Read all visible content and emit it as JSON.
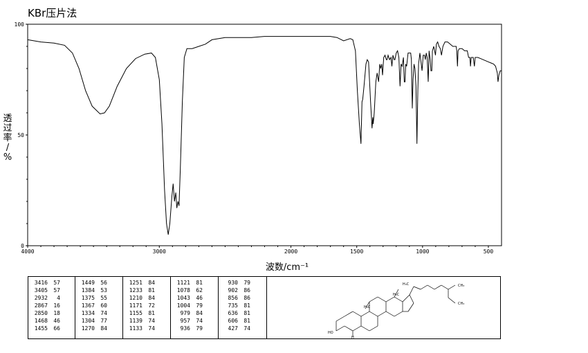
{
  "title": "KBr压片法",
  "chart_data": {
    "type": "line",
    "xlabel": "波数/cm⁻¹",
    "ylabel": "透\n过\n率\n/\n%",
    "xlim": [
      4000,
      400
    ],
    "ylim": [
      0,
      100
    ],
    "x_ticks": [
      4000,
      3000,
      2000,
      1500,
      1000,
      500
    ],
    "y_ticks": [
      0,
      50,
      100
    ],
    "grid": false,
    "series": [
      {
        "color": "#000000",
        "points": [
          [
            4000,
            93
          ],
          [
            3900,
            92
          ],
          [
            3800,
            91.5
          ],
          [
            3720,
            90.5
          ],
          [
            3660,
            87
          ],
          [
            3610,
            80
          ],
          [
            3560,
            70
          ],
          [
            3510,
            63
          ],
          [
            3450,
            59.5
          ],
          [
            3416,
            60
          ],
          [
            3380,
            63
          ],
          [
            3320,
            72
          ],
          [
            3250,
            80
          ],
          [
            3180,
            84.5
          ],
          [
            3110,
            86.5
          ],
          [
            3060,
            87
          ],
          [
            3030,
            85
          ],
          [
            3000,
            75
          ],
          [
            2980,
            55
          ],
          [
            2960,
            25
          ],
          [
            2945,
            10
          ],
          [
            2932,
            5
          ],
          [
            2920,
            10
          ],
          [
            2905,
            22
          ],
          [
            2895,
            28
          ],
          [
            2885,
            20
          ],
          [
            2875,
            24
          ],
          [
            2867,
            17
          ],
          [
            2858,
            20
          ],
          [
            2850,
            18
          ],
          [
            2840,
            35
          ],
          [
            2825,
            65
          ],
          [
            2810,
            85
          ],
          [
            2790,
            89
          ],
          [
            2750,
            89
          ],
          [
            2700,
            90
          ],
          [
            2650,
            91
          ],
          [
            2600,
            93
          ],
          [
            2500,
            94
          ],
          [
            2300,
            94
          ],
          [
            2200,
            94.5
          ],
          [
            2100,
            94.5
          ],
          [
            2000,
            94.5
          ],
          [
            1900,
            94.5
          ],
          [
            1800,
            94.5
          ],
          [
            1700,
            94.5
          ],
          [
            1650,
            94
          ],
          [
            1600,
            92.5
          ],
          [
            1550,
            93.5
          ],
          [
            1530,
            93
          ],
          [
            1510,
            88
          ],
          [
            1495,
            70
          ],
          [
            1480,
            55
          ],
          [
            1468,
            46
          ],
          [
            1460,
            65
          ],
          [
            1455,
            66
          ],
          [
            1445,
            72
          ],
          [
            1430,
            82
          ],
          [
            1420,
            84
          ],
          [
            1410,
            83
          ],
          [
            1395,
            65
          ],
          [
            1384,
            53
          ],
          [
            1378,
            58
          ],
          [
            1375,
            55
          ],
          [
            1367,
            60
          ],
          [
            1355,
            74
          ],
          [
            1345,
            78
          ],
          [
            1334,
            74
          ],
          [
            1325,
            82
          ],
          [
            1318,
            80
          ],
          [
            1310,
            82
          ],
          [
            1304,
            77
          ],
          [
            1295,
            85
          ],
          [
            1285,
            86
          ],
          [
            1275,
            84
          ],
          [
            1270,
            84
          ],
          [
            1262,
            86
          ],
          [
            1251,
            84
          ],
          [
            1240,
            85
          ],
          [
            1233,
            81
          ],
          [
            1225,
            86
          ],
          [
            1215,
            84
          ],
          [
            1210,
            84
          ],
          [
            1200,
            87
          ],
          [
            1190,
            88
          ],
          [
            1180,
            85
          ],
          [
            1171,
            72
          ],
          [
            1163,
            82
          ],
          [
            1155,
            81
          ],
          [
            1145,
            85
          ],
          [
            1139,
            74
          ],
          [
            1133,
            74
          ],
          [
            1128,
            82
          ],
          [
            1121,
            81
          ],
          [
            1110,
            87
          ],
          [
            1100,
            87
          ],
          [
            1090,
            87
          ],
          [
            1085,
            84
          ],
          [
            1078,
            62
          ],
          [
            1072,
            75
          ],
          [
            1065,
            82
          ],
          [
            1058,
            80
          ],
          [
            1050,
            72
          ],
          [
            1043,
            46
          ],
          [
            1036,
            70
          ],
          [
            1030,
            82
          ],
          [
            1020,
            87
          ],
          [
            1010,
            82
          ],
          [
            1004,
            79
          ],
          [
            995,
            86
          ],
          [
            985,
            86
          ],
          [
            979,
            84
          ],
          [
            972,
            87
          ],
          [
            965,
            85
          ],
          [
            957,
            74
          ],
          [
            950,
            88
          ],
          [
            942,
            84
          ],
          [
            936,
            79
          ],
          [
            930,
            79
          ],
          [
            925,
            88
          ],
          [
            915,
            90
          ],
          [
            902,
            86
          ],
          [
            895,
            91
          ],
          [
            885,
            92
          ],
          [
            875,
            90
          ],
          [
            865,
            89
          ],
          [
            856,
            86
          ],
          [
            845,
            90
          ],
          [
            830,
            92
          ],
          [
            810,
            92
          ],
          [
            790,
            91
          ],
          [
            770,
            90
          ],
          [
            755,
            90
          ],
          [
            745,
            90
          ],
          [
            740,
            88
          ],
          [
            735,
            81
          ],
          [
            730,
            88
          ],
          [
            720,
            89
          ],
          [
            700,
            89
          ],
          [
            680,
            88
          ],
          [
            660,
            88
          ],
          [
            650,
            85
          ],
          [
            640,
            85
          ],
          [
            636,
            81
          ],
          [
            630,
            85
          ],
          [
            615,
            85
          ],
          [
            606,
            81
          ],
          [
            600,
            85
          ],
          [
            580,
            85
          ],
          [
            560,
            84.5
          ],
          [
            540,
            84
          ],
          [
            520,
            83.5
          ],
          [
            500,
            83
          ],
          [
            480,
            82.5
          ],
          [
            460,
            82
          ],
          [
            445,
            81
          ],
          [
            432,
            78
          ],
          [
            427,
            74
          ],
          [
            420,
            77
          ],
          [
            410,
            79
          ],
          [
            400,
            79
          ]
        ]
      }
    ]
  },
  "peak_table": [
    [
      [
        "3416",
        "57"
      ],
      [
        "3405",
        "57"
      ],
      [
        "2932",
        "4"
      ],
      [
        "2867",
        "16"
      ],
      [
        "2850",
        "18"
      ],
      [
        "1468",
        "46"
      ],
      [
        "1455",
        "66"
      ]
    ],
    [
      [
        "1449",
        "56"
      ],
      [
        "1384",
        "53"
      ],
      [
        "1375",
        "55"
      ],
      [
        "1367",
        "60"
      ],
      [
        "1334",
        "74"
      ],
      [
        "1304",
        "77"
      ],
      [
        "1270",
        "84"
      ]
    ],
    [
      [
        "1251",
        "84"
      ],
      [
        "1233",
        "81"
      ],
      [
        "1210",
        "84"
      ],
      [
        "1171",
        "72"
      ],
      [
        "1155",
        "81"
      ],
      [
        "1139",
        "74"
      ],
      [
        "1133",
        "74"
      ]
    ],
    [
      [
        "1121",
        "81"
      ],
      [
        "1078",
        "62"
      ],
      [
        "1043",
        "46"
      ],
      [
        "1004",
        "79"
      ],
      [
        "979",
        "84"
      ],
      [
        "957",
        "74"
      ],
      [
        "936",
        "79"
      ]
    ],
    [
      [
        "930",
        "79"
      ],
      [
        "902",
        "86"
      ],
      [
        "856",
        "86"
      ],
      [
        "735",
        "81"
      ],
      [
        "636",
        "81"
      ],
      [
        "606",
        "81"
      ],
      [
        "427",
        "74"
      ]
    ]
  ],
  "structure": {
    "labels": {
      "me18": "H₃C",
      "me19": "H₃C",
      "me21": "H₃C",
      "me26": "CH₃",
      "me27": "CH₃",
      "ho": "HO",
      "h5": "H"
    }
  }
}
